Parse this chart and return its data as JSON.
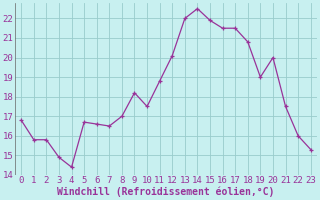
{
  "x": [
    0,
    1,
    2,
    3,
    4,
    5,
    6,
    7,
    8,
    9,
    10,
    11,
    12,
    13,
    14,
    15,
    16,
    17,
    18,
    19,
    20,
    21,
    22,
    23
  ],
  "y": [
    16.8,
    15.8,
    15.8,
    14.9,
    14.4,
    16.7,
    16.6,
    16.5,
    17.0,
    18.2,
    17.5,
    18.8,
    20.1,
    22.0,
    22.5,
    21.9,
    21.5,
    21.5,
    20.8,
    19.0,
    20.0,
    17.5,
    16.0,
    15.3
  ],
  "xlabel": "Windchill (Refroidissement éolien,°C)",
  "line_color": "#993399",
  "marker_color": "#993399",
  "bg_color": "#c8f0f0",
  "grid_color": "#99cccc",
  "ylim": [
    14,
    22.8
  ],
  "xlim": [
    -0.5,
    23.5
  ],
  "yticks": [
    14,
    15,
    16,
    17,
    18,
    19,
    20,
    21,
    22
  ],
  "xticks": [
    0,
    1,
    2,
    3,
    4,
    5,
    6,
    7,
    8,
    9,
    10,
    11,
    12,
    13,
    14,
    15,
    16,
    17,
    18,
    19,
    20,
    21,
    22,
    23
  ],
  "tick_fontsize": 6.5,
  "xlabel_fontsize": 7.0
}
